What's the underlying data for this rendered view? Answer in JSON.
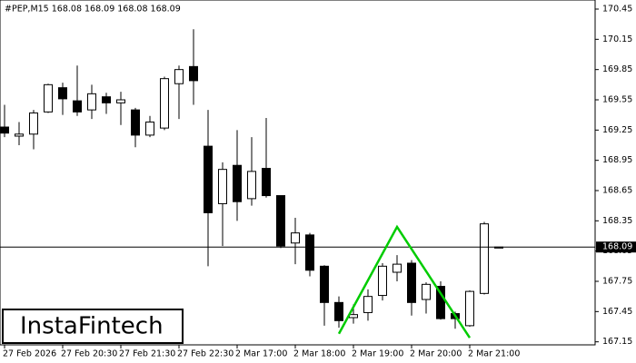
{
  "chart_data": {
    "type": "candlestick",
    "header": "#PEP,M15  168.08 168.09 168.08 168.09",
    "watermark": "InstaFintech",
    "categories": [
      "27 Feb 2026",
      null,
      null,
      null,
      "27 Feb 20:30",
      null,
      null,
      null,
      "27 Feb 21:30",
      null,
      null,
      null,
      "27 Feb 22:30",
      null,
      null,
      null,
      "2 Mar 17:00",
      null,
      null,
      null,
      "2 Mar 18:00",
      null,
      null,
      null,
      "2 Mar 19:00",
      null,
      null,
      null,
      "2 Mar 20:00",
      null,
      null,
      null,
      "2 Mar 21:00",
      null,
      null
    ],
    "open": [
      169.28,
      169.19,
      169.21,
      169.43,
      169.67,
      169.54,
      169.45,
      169.58,
      169.52,
      169.45,
      169.2,
      169.27,
      169.71,
      169.88,
      169.09,
      168.52,
      168.9,
      168.57,
      168.87,
      168.6,
      168.13,
      168.21,
      167.9,
      167.54,
      167.39,
      167.44,
      167.61,
      167.84,
      167.93,
      167.57,
      167.7,
      167.43,
      167.31,
      167.63,
      168.08
    ],
    "high": [
      169.5,
      169.33,
      169.45,
      169.71,
      169.72,
      169.89,
      169.7,
      169.62,
      169.63,
      169.47,
      169.39,
      169.78,
      169.89,
      170.25,
      169.45,
      168.93,
      169.25,
      169.18,
      169.37,
      168.6,
      168.38,
      168.23,
      167.91,
      167.6,
      167.52,
      167.67,
      167.93,
      168.01,
      167.96,
      167.74,
      167.75,
      167.45,
      167.66,
      168.34,
      168.09
    ],
    "low": [
      169.18,
      169.1,
      169.06,
      169.42,
      169.4,
      169.39,
      169.36,
      169.41,
      169.3,
      169.08,
      169.18,
      169.25,
      169.36,
      169.5,
      167.9,
      168.1,
      168.35,
      168.5,
      168.58,
      168.08,
      167.92,
      167.8,
      167.31,
      167.29,
      167.33,
      167.36,
      167.56,
      167.75,
      167.41,
      167.43,
      167.37,
      167.28,
      167.3,
      167.62,
      168.08
    ],
    "close": [
      169.22,
      169.21,
      169.42,
      169.7,
      169.56,
      169.43,
      169.61,
      169.52,
      169.55,
      169.2,
      169.33,
      169.76,
      169.85,
      169.74,
      168.43,
      168.86,
      168.54,
      168.84,
      168.6,
      168.1,
      168.23,
      167.86,
      167.54,
      167.36,
      167.42,
      167.6,
      167.9,
      167.92,
      167.54,
      167.72,
      167.38,
      167.38,
      167.65,
      168.32,
      168.09
    ],
    "last_price": 168.09,
    "pattern_line": {
      "color": "#00cc00",
      "x": [
        23,
        27,
        32
      ],
      "values": [
        167.23,
        168.29,
        167.19
      ]
    },
    "ylim": [
      167.12,
      170.54
    ],
    "yticks": [
      170.45,
      170.15,
      169.85,
      169.55,
      169.25,
      168.95,
      168.65,
      168.35,
      168.05,
      167.75,
      167.45,
      167.15
    ]
  }
}
